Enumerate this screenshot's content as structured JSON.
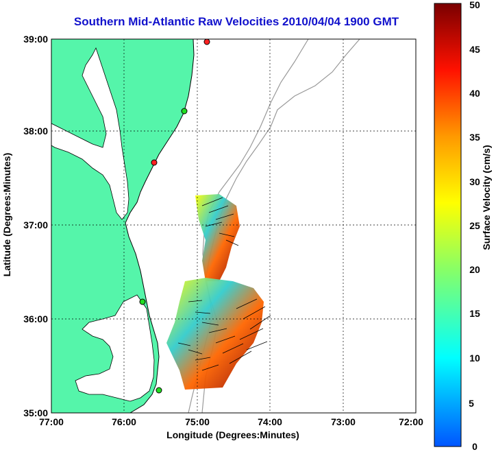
{
  "title": "Southern Mid-Atlantic Raw Velocities 2010/04/04 1900 GMT",
  "xlabel": "Longitude (Degrees:Minutes)",
  "ylabel": "Latitude (Degrees:Minutes)",
  "colorbar": {
    "label": "Surface Velocity (cm/s)",
    "ticks": [
      "0",
      "5",
      "10",
      "15",
      "20",
      "25",
      "30",
      "35",
      "40",
      "45",
      "50"
    ]
  },
  "x_ticks": [
    "77:00",
    "76:00",
    "75:00",
    "74:00",
    "73:00",
    "72:00"
  ],
  "y_ticks": [
    "39:00",
    "38:00",
    "37:00",
    "36:00",
    "35:00"
  ],
  "colors": {
    "land": "#55f5aa",
    "title": "#1111cc",
    "coast": "#000000",
    "bathymetry": "#999999"
  }
}
